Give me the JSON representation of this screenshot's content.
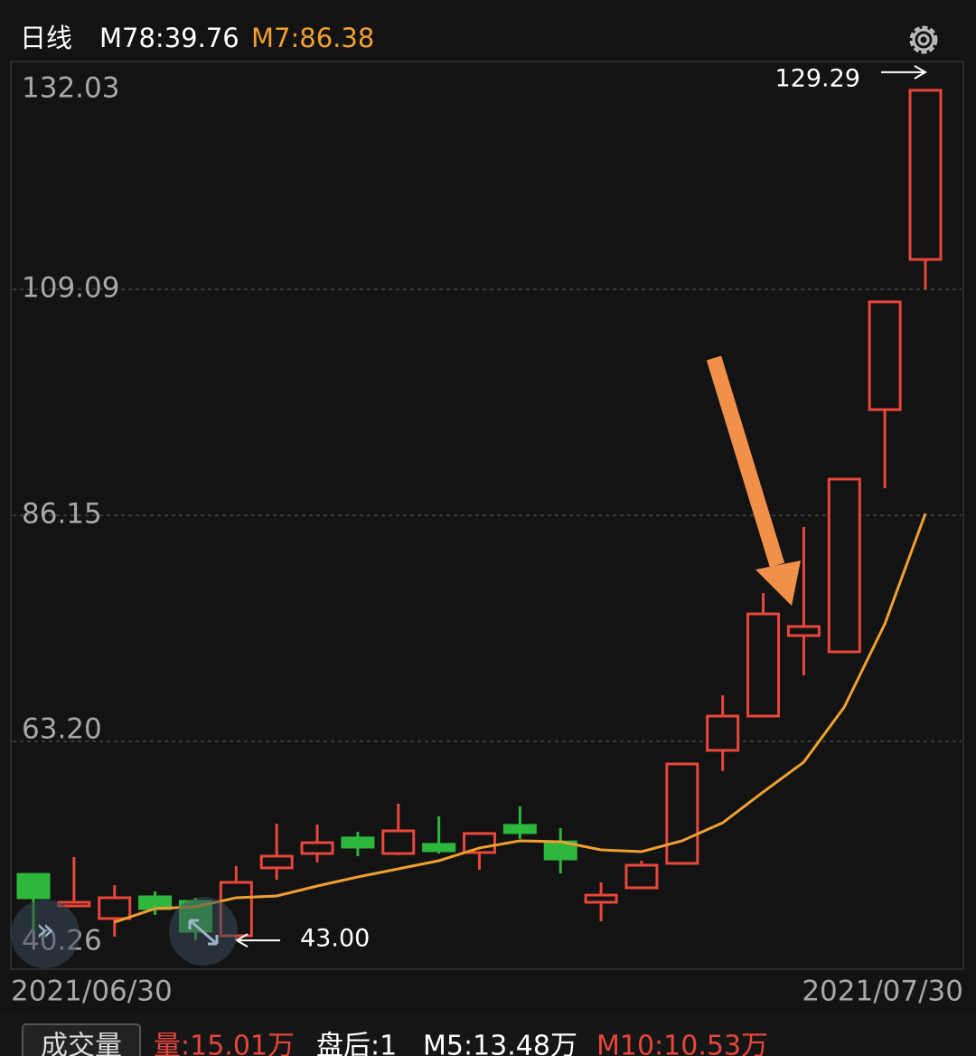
{
  "header": {
    "period": "日线",
    "ma_main": "M78:39.76",
    "ma7": "M7:86.38"
  },
  "chart_data": {
    "type": "candlestick",
    "categories": [
      "2021/06/30",
      null,
      null,
      null,
      null,
      null,
      null,
      null,
      null,
      null,
      null,
      null,
      null,
      null,
      null,
      null,
      null,
      null,
      null,
      null,
      null,
      null,
      "2021/07/30"
    ],
    "open": [
      49.7,
      46.5,
      45.22,
      47.42,
      46.96,
      43.47,
      50.36,
      51.82,
      53.4,
      51.82,
      52.75,
      51.92,
      54.67,
      53.0,
      46.87,
      48.34,
      50.82,
      62.29,
      65.77,
      73.94,
      72.29,
      96.88,
      112.12
    ],
    "high": [
      49.7,
      51.46,
      48.61,
      47.97,
      47.33,
      50.54,
      54.85,
      54.76,
      54.03,
      56.87,
      55.59,
      53.94,
      56.6,
      54.4,
      48.89,
      51.09,
      60.91,
      67.88,
      78.25,
      84.95,
      89.82,
      107.81,
      129.29
    ],
    "low": [
      43.93,
      46.5,
      43.38,
      45.59,
      43.02,
      43.0,
      49.16,
      50.91,
      51.55,
      51.64,
      51.82,
      50.17,
      53.3,
      49.8,
      44.94,
      48.34,
      50.82,
      60.18,
      65.77,
      69.9,
      72.29,
      88.9,
      109.09
    ],
    "close": [
      47.33,
      46.87,
      47.33,
      46.23,
      43.93,
      48.89,
      51.55,
      52.92,
      52.47,
      54.12,
      52.1,
      53.85,
      53.94,
      51.27,
      47.6,
      50.63,
      60.91,
      65.77,
      76.14,
      74.86,
      89.82,
      107.81,
      129.29
    ],
    "up_color": "#e8473b",
    "down_color": "#2db83d",
    "ma": {
      "color": "#f0a030",
      "values": [
        null,
        null,
        44.85,
        46.23,
        46.41,
        47.33,
        47.51,
        48.52,
        49.44,
        50.26,
        51.09,
        52.38,
        53.11,
        53.02,
        52.19,
        52.01,
        53.11,
        54.94,
        58.07,
        61.1,
        66.69,
        75.13,
        86.33
      ]
    },
    "ylim": [
      40.26,
      132.03
    ],
    "yticks": [
      40.26,
      {
        "value": 63.2,
        "label": "63.20"
      },
      86.15,
      109.09,
      132.03
    ],
    "grid": true,
    "max_label": 129.29,
    "min_label": {
      "value": 43.0,
      "label": "43.00"
    }
  },
  "volume_bar": {
    "button": "成交量",
    "items": [
      "量:15.01万",
      "盘后:1",
      "M5:13.48万",
      "M10:10.53万"
    ]
  }
}
